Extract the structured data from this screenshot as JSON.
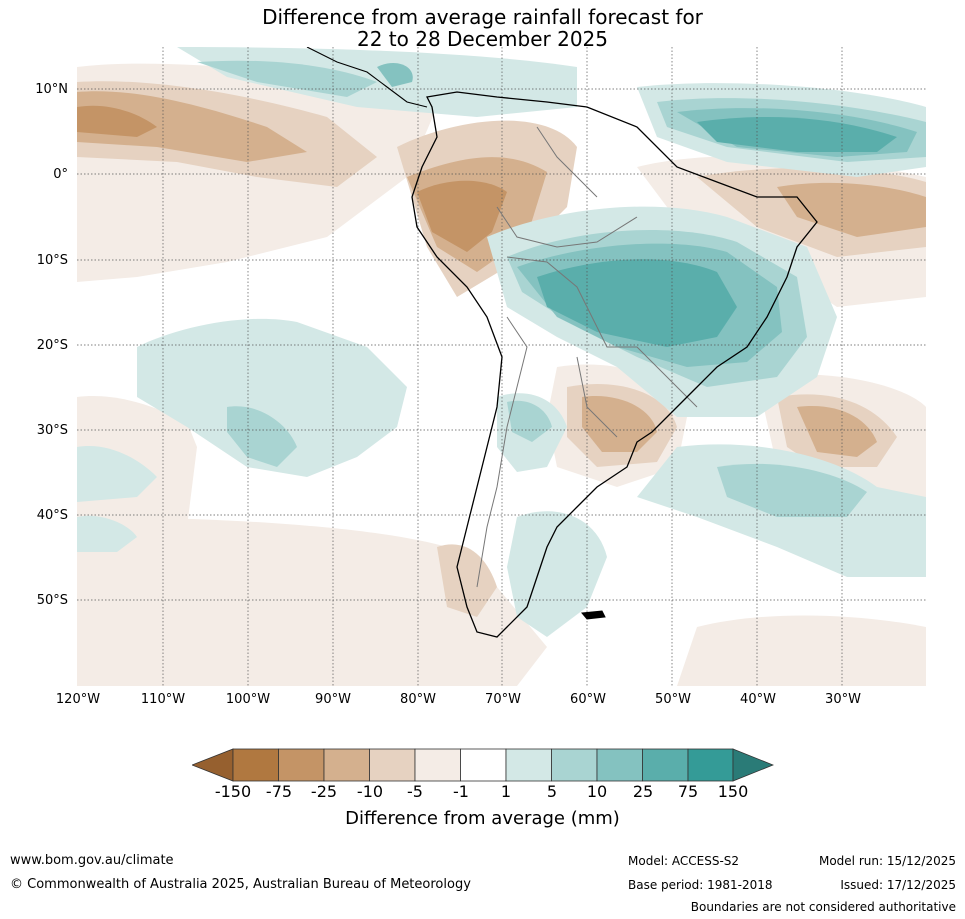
{
  "title": {
    "line1": "Difference from average rainfall forecast for",
    "line2": "22 to 28 December 2025"
  },
  "map": {
    "region": "South America",
    "lat_labels": [
      "10°N",
      "0°",
      "10°S",
      "20°S",
      "30°S",
      "40°S",
      "50°S"
    ],
    "lon_labels": [
      "120°W",
      "110°W",
      "100°W",
      "90°W",
      "80°W",
      "70°W",
      "60°W",
      "50°W",
      "40°W",
      "30°W"
    ]
  },
  "legend": {
    "ticks": [
      "-150",
      "-75",
      "-25",
      "-10",
      "-5",
      "-1",
      "1",
      "5",
      "10",
      "25",
      "75",
      "150"
    ],
    "colors": [
      "#96602f",
      "#b07840",
      "#c49466",
      "#d4b08e",
      "#e6d2c1",
      "#f4ece6",
      "#ffffff",
      "#d3e8e6",
      "#a9d4d2",
      "#84c2c0",
      "#5aaeab",
      "#349b97",
      "#2a7b77"
    ],
    "label": "Difference from average (mm)"
  },
  "footer": {
    "website": "www.bom.gov.au/climate",
    "copyright": "© Commonwealth of Australia 2025, Australian Bureau of Meteorology",
    "model": "Model: ACCESS-S2",
    "base_period": "Base period: 1981-2018",
    "model_run": "Model run: 15/12/2025",
    "issued": "Issued: 17/12/2025",
    "disclaimer": "Boundaries are not considered authoritative"
  }
}
